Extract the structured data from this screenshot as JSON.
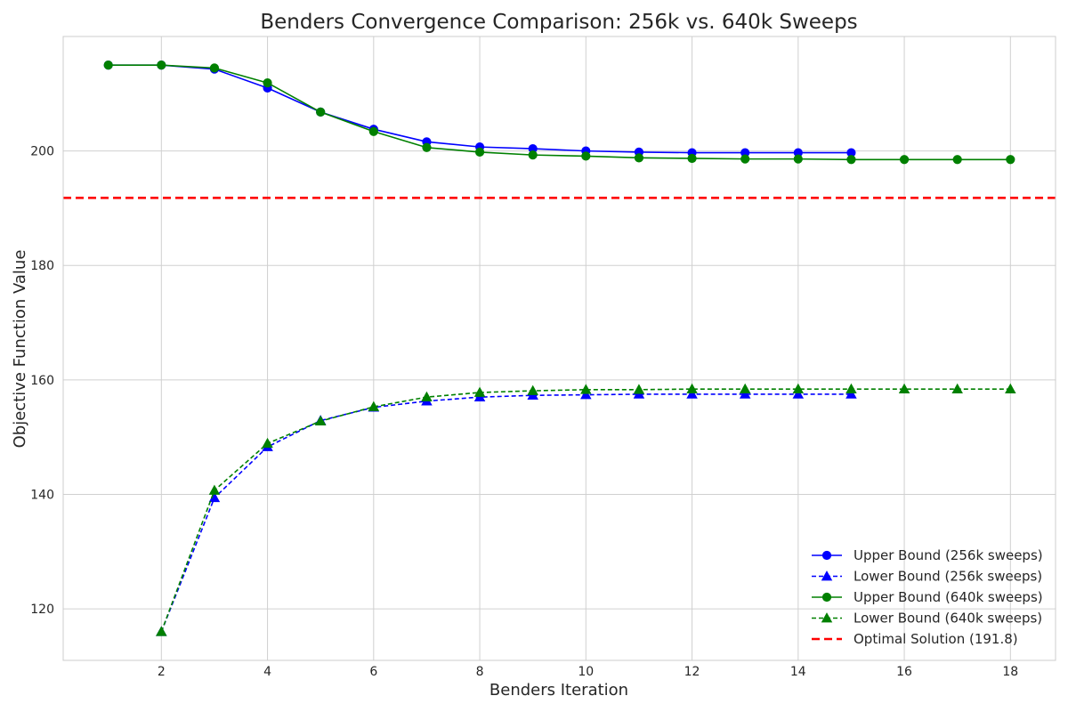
{
  "chart_data": {
    "type": "line",
    "title": "Benders Convergence Comparison: 256k vs. 640k Sweeps",
    "xlabel": "Benders Iteration",
    "ylabel": "Objective Function Value",
    "xlim": [
      0.15,
      18.85
    ],
    "ylim": [
      111,
      220
    ],
    "xticks": [
      2,
      4,
      6,
      8,
      10,
      12,
      14,
      16,
      18
    ],
    "yticks": [
      120,
      140,
      160,
      180,
      200
    ],
    "grid": true,
    "legend_position": "lower-right",
    "series": [
      {
        "name": "Upper Bound (256k sweeps)",
        "color": "#0000ff",
        "line_style": "solid",
        "marker": "circle",
        "x": [
          1,
          2,
          3,
          4,
          5,
          6,
          7,
          8,
          9,
          10,
          11,
          12,
          13,
          14,
          15
        ],
        "y": [
          215,
          215,
          214.3,
          211,
          206.8,
          203.8,
          201.6,
          200.7,
          200.4,
          200,
          199.8,
          199.7,
          199.7,
          199.7,
          199.7
        ]
      },
      {
        "name": "Lower Bound (256k sweeps)",
        "color": "#0000ff",
        "line_style": "dashed",
        "marker": "triangle",
        "x": [
          2,
          3,
          4,
          5,
          6,
          7,
          8,
          9,
          10,
          11,
          12,
          13,
          14,
          15
        ],
        "y": [
          116,
          139.4,
          148.3,
          152.9,
          155.2,
          156.3,
          157,
          157.3,
          157.4,
          157.5,
          157.5,
          157.5,
          157.5,
          157.5
        ]
      },
      {
        "name": "Upper Bound (640k sweeps)",
        "color": "#008000",
        "line_style": "solid",
        "marker": "circle",
        "x": [
          1,
          2,
          3,
          4,
          5,
          6,
          7,
          8,
          9,
          10,
          11,
          12,
          13,
          14,
          15,
          16,
          17,
          18
        ],
        "y": [
          215,
          215,
          214.5,
          211.9,
          206.8,
          203.4,
          200.6,
          199.8,
          199.3,
          199.1,
          198.8,
          198.7,
          198.6,
          198.6,
          198.5,
          198.5,
          198.5,
          198.5
        ]
      },
      {
        "name": "Lower Bound (640k sweeps)",
        "color": "#008000",
        "line_style": "dashed",
        "marker": "triangle",
        "x": [
          2,
          3,
          4,
          5,
          6,
          7,
          8,
          9,
          10,
          11,
          12,
          13,
          14,
          15,
          16,
          17,
          18
        ],
        "y": [
          116,
          140.7,
          148.9,
          152.8,
          155.3,
          157,
          157.8,
          158.1,
          158.3,
          158.3,
          158.4,
          158.4,
          158.4,
          158.4,
          158.4,
          158.4,
          158.4
        ]
      }
    ],
    "reference_lines": [
      {
        "name": "Optimal Solution (191.8)",
        "y": 191.8,
        "color": "#ff0000",
        "line_style": "dashed"
      }
    ]
  }
}
